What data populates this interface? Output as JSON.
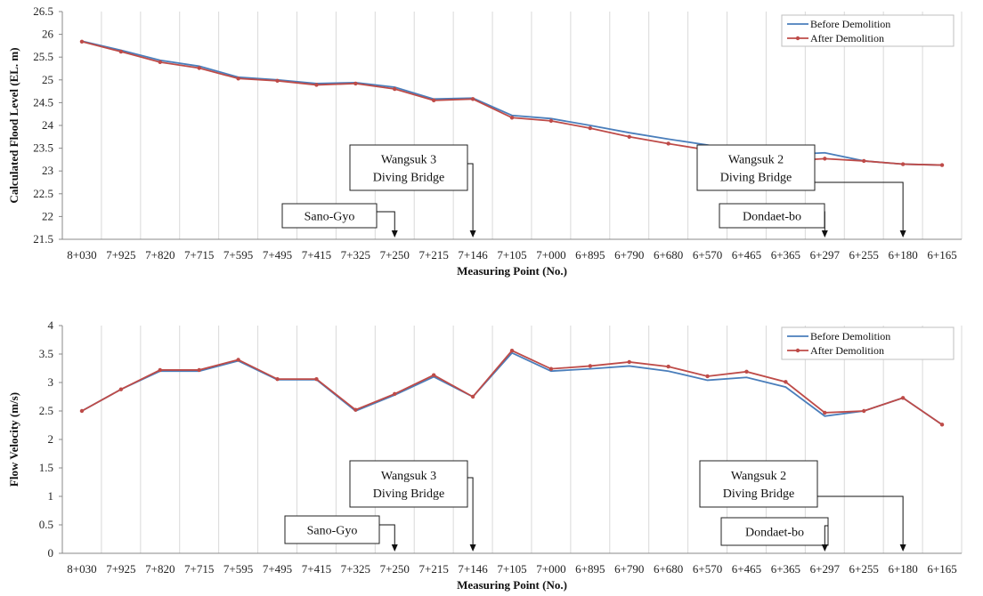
{
  "colors": {
    "before": "#4a7ebb",
    "after": "#be4b48",
    "grid": "#d9d9d9"
  },
  "chart_data": [
    {
      "type": "line",
      "title": "",
      "xlabel": "Measuring Point (No.)",
      "ylabel": "Calculated Flood Level (EL. m)",
      "ylim": [
        21.5,
        26.5
      ],
      "ytick_step": 0.5,
      "ytick_decimals": 1,
      "grid": "vertical",
      "legend_position": "top-right",
      "categories": [
        "8+030",
        "7+925",
        "7+820",
        "7+715",
        "7+595",
        "7+495",
        "7+415",
        "7+325",
        "7+250",
        "7+215",
        "7+146",
        "7+105",
        "7+000",
        "6+895",
        "6+790",
        "6+680",
        "6+570",
        "6+465",
        "6+365",
        "6+297",
        "6+255",
        "6+180",
        "6+165"
      ],
      "x_positions": [
        0,
        1,
        2,
        3,
        4,
        5,
        6,
        7,
        8,
        9,
        10,
        11,
        12,
        13,
        14,
        15,
        16,
        17,
        18,
        19,
        20,
        21,
        22
      ],
      "series": [
        {
          "name": "Before Demolition",
          "markers": false,
          "x": [
            0,
            1,
            2,
            3,
            4,
            5,
            6,
            7,
            8,
            9,
            10,
            11,
            12,
            13,
            14,
            15,
            16,
            17,
            18,
            19,
            20,
            21,
            22
          ],
          "values": [
            25.85,
            25.65,
            25.43,
            25.3,
            25.06,
            25.0,
            24.92,
            24.94,
            24.84,
            24.58,
            24.6,
            24.22,
            24.15,
            24.0,
            23.84,
            23.7,
            23.57,
            23.42,
            23.36,
            23.4,
            23.22,
            23.15,
            23.13
          ]
        },
        {
          "name": "After Demolition",
          "markers": true,
          "x": [
            0,
            1,
            2,
            3,
            4,
            5,
            6,
            7,
            8,
            9,
            10,
            11,
            12,
            13,
            14,
            15,
            16,
            17,
            18,
            19,
            20,
            21,
            22
          ],
          "values": [
            25.84,
            25.62,
            25.39,
            25.26,
            25.03,
            24.98,
            24.89,
            24.92,
            24.8,
            24.55,
            24.58,
            24.17,
            24.1,
            23.94,
            23.75,
            23.6,
            23.46,
            23.3,
            23.22,
            23.27,
            23.22,
            23.15,
            23.13
          ]
        }
      ],
      "annotations": [
        {
          "lines": [
            "Sano-Gyo"
          ],
          "target_x": 8.0
        },
        {
          "lines": [
            "Wangsuk 3",
            "Diving Bridge"
          ],
          "target_x": 10.0
        },
        {
          "lines": [
            "Wangsuk 2",
            "Diving Bridge"
          ],
          "target_x": 21.0
        },
        {
          "lines": [
            "Dondaet-bo"
          ],
          "target_x": 19.0
        }
      ]
    },
    {
      "type": "line",
      "title": "",
      "xlabel": "Measuring Point (No.)",
      "ylabel": "Flow Velocity (m/s)",
      "ylim": [
        0,
        4
      ],
      "ytick_step": 0.5,
      "ytick_decimals": 0,
      "grid": "vertical",
      "legend_position": "top-right",
      "categories": [
        "8+030",
        "7+925",
        "7+820",
        "7+715",
        "7+595",
        "7+495",
        "7+415",
        "7+325",
        "7+250",
        "7+215",
        "7+146",
        "7+105",
        "7+000",
        "6+895",
        "6+790",
        "6+680",
        "6+570",
        "6+465",
        "6+365",
        "6+297",
        "6+255",
        "6+180",
        "6+165"
      ],
      "x_positions": [
        0,
        1,
        2,
        3,
        4,
        5,
        6,
        7,
        8,
        9,
        10,
        11,
        12,
        13,
        14,
        15,
        16,
        17,
        18,
        19,
        20,
        21,
        22
      ],
      "series": [
        {
          "name": "Before Demolition",
          "markers": false,
          "x": [
            0,
            1,
            2,
            3,
            4,
            5,
            6,
            7,
            8,
            9,
            10,
            11,
            12,
            13,
            14,
            15,
            16,
            17,
            18,
            19,
            20,
            21,
            22
          ],
          "values": [
            2.5,
            2.88,
            3.2,
            3.2,
            3.38,
            3.05,
            3.05,
            2.5,
            2.78,
            3.1,
            2.75,
            3.52,
            3.2,
            3.24,
            3.29,
            3.2,
            3.04,
            3.09,
            2.92,
            2.41,
            2.5,
            2.73,
            2.26
          ]
        },
        {
          "name": "After Demolition",
          "markers": true,
          "x": [
            0,
            1,
            2,
            3,
            4,
            5,
            6,
            7,
            8,
            9,
            10,
            11,
            12,
            13,
            14,
            15,
            16,
            17,
            18,
            19,
            20,
            21,
            22
          ],
          "values": [
            2.5,
            2.88,
            3.22,
            3.22,
            3.4,
            3.06,
            3.06,
            2.52,
            2.8,
            3.13,
            2.75,
            3.56,
            3.24,
            3.29,
            3.36,
            3.28,
            3.11,
            3.19,
            3.01,
            2.47,
            2.5,
            2.73,
            2.26
          ]
        }
      ],
      "annotations": [
        {
          "lines": [
            "Sano-Gyo"
          ],
          "target_x": 8.0
        },
        {
          "lines": [
            "Wangsuk 3",
            "Diving Bridge"
          ],
          "target_x": 10.0
        },
        {
          "lines": [
            "Wangsuk 2",
            "Diving Bridge"
          ],
          "target_x": 21.0
        },
        {
          "lines": [
            "Dondaet-bo"
          ],
          "target_x": 19.0
        }
      ]
    }
  ]
}
